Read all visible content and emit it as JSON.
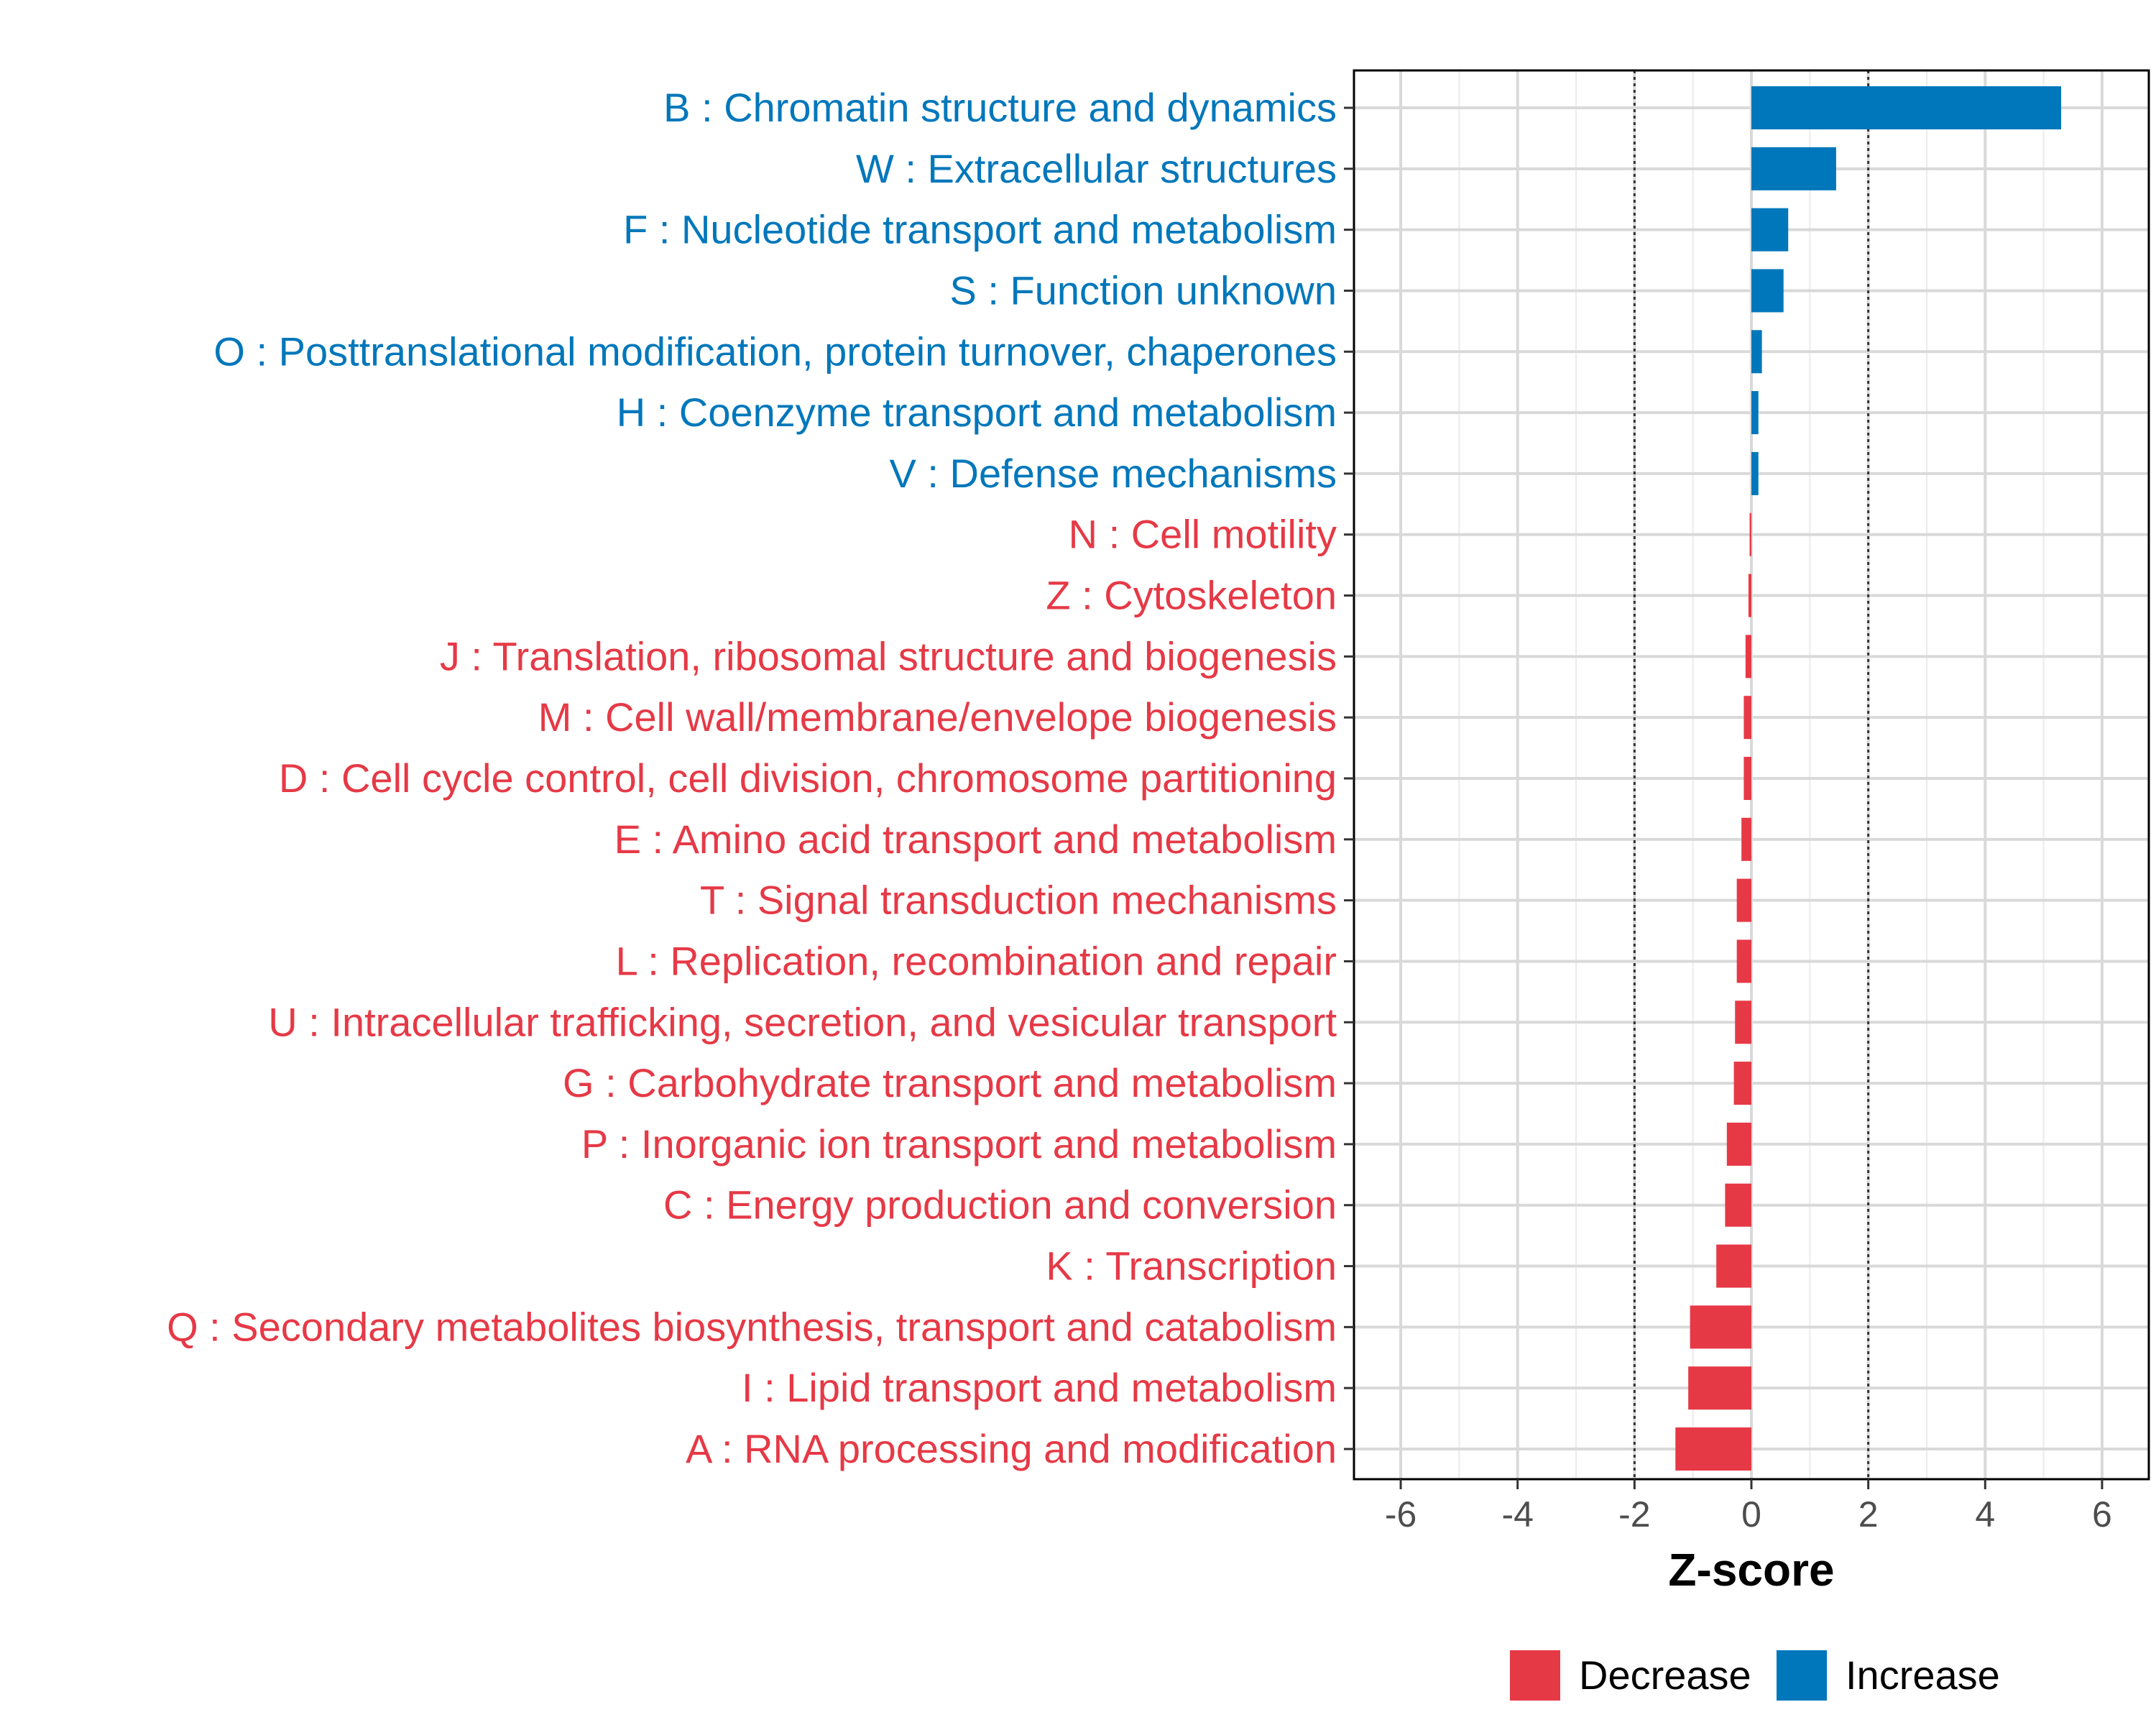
{
  "chart_data": {
    "type": "bar",
    "orientation": "horizontal",
    "title": "",
    "xlabel": "Z-score",
    "ylabel": "",
    "xlim": [
      -6.8,
      6.8
    ],
    "xticks": [
      "-6",
      "-4",
      "-2",
      "0",
      "2",
      "4",
      "6"
    ],
    "xtick_values": [
      -6,
      -4,
      -2,
      0,
      2,
      4,
      6
    ],
    "reference_lines": [
      -2,
      2
    ],
    "grid": true,
    "legend_position": "bottom-right",
    "colors": {
      "Increase": "#0077bb",
      "Decrease": "#e63946"
    },
    "legend": [
      "Decrease",
      "Increase"
    ],
    "categories": [
      "B : Chromatin structure and dynamics",
      "W : Extracellular structures",
      "F : Nucleotide transport and metabolism",
      "S : Function unknown",
      "O : Posttranslational modification, protein turnover, chaperones",
      "H : Coenzyme transport and metabolism",
      "V : Defense mechanisms",
      "N : Cell motility",
      "Z : Cytoskeleton",
      "J : Translation, ribosomal structure and biogenesis",
      "M : Cell wall/membrane/envelope biogenesis",
      "D : Cell cycle control, cell division, chromosome partitioning",
      "E : Amino acid transport and metabolism",
      "T : Signal transduction mechanisms",
      "L : Replication, recombination and repair",
      "U : Intracellular trafficking, secretion, and vesicular transport",
      "G : Carbohydrate transport and metabolism",
      "P : Inorganic ion transport and metabolism",
      "C : Energy production and conversion",
      "K : Transcription",
      "Q : Secondary metabolites biosynthesis, transport and catabolism",
      "I : Lipid transport and metabolism",
      "A : RNA processing and modification"
    ],
    "values": [
      5.3,
      1.45,
      0.63,
      0.55,
      0.18,
      0.12,
      0.12,
      -0.03,
      -0.05,
      -0.1,
      -0.13,
      -0.13,
      -0.17,
      -0.25,
      -0.25,
      -0.28,
      -0.3,
      -0.42,
      -0.45,
      -0.6,
      -1.05,
      -1.08,
      -1.3
    ],
    "groups": [
      "Increase",
      "Increase",
      "Increase",
      "Increase",
      "Increase",
      "Increase",
      "Increase",
      "Decrease",
      "Decrease",
      "Decrease",
      "Decrease",
      "Decrease",
      "Decrease",
      "Decrease",
      "Decrease",
      "Decrease",
      "Decrease",
      "Decrease",
      "Decrease",
      "Decrease",
      "Decrease",
      "Decrease",
      "Decrease"
    ]
  }
}
